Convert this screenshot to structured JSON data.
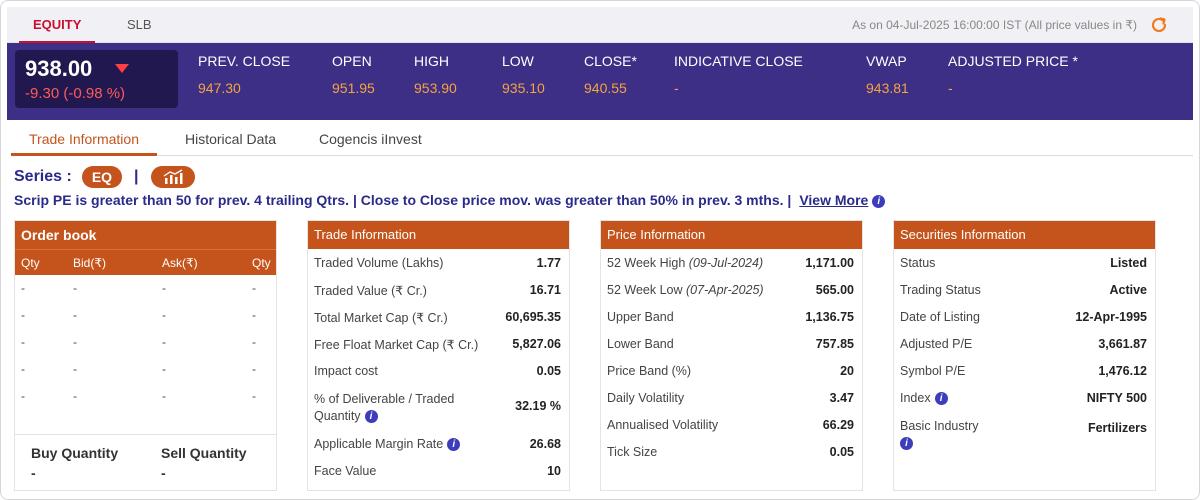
{
  "topbar": {
    "tab_equity": "EQUITY",
    "tab_slb": "SLB",
    "as_on": "As on 04-Jul-2025 16:00:00 IST (All price values in ₹)"
  },
  "quote": {
    "ltp": "938.00",
    "change": "-9.30 (-0.98 %)",
    "stats": [
      {
        "label": "PREV. CLOSE",
        "value": "947.30"
      },
      {
        "label": "OPEN",
        "value": "951.95"
      },
      {
        "label": "HIGH",
        "value": "953.90"
      },
      {
        "label": "LOW",
        "value": "935.10"
      },
      {
        "label": "CLOSE*",
        "value": "940.55"
      },
      {
        "label": "INDICATIVE CLOSE",
        "value": "-"
      },
      {
        "label": "VWAP",
        "value": "943.81"
      },
      {
        "label": "ADJUSTED PRICE *",
        "value": "-"
      }
    ]
  },
  "subtabs": [
    "Trade Information",
    "Historical Data",
    "Cogencis iInvest"
  ],
  "series": {
    "label": "Series :",
    "value": "EQ",
    "separator": "|"
  },
  "notice": {
    "text": "Scrip PE is greater than 50 for prev. 4 trailing Qtrs. | Close to Close price mov. was greater than 50% in prev. 3 mths. |",
    "link": "View More",
    "info": "i"
  },
  "order_book": {
    "title": "Order book",
    "columns": [
      "Qty",
      "Bid(₹)",
      "Ask(₹)",
      "Qty"
    ],
    "rows": [
      [
        "-",
        "-",
        "-",
        "-"
      ],
      [
        "-",
        "-",
        "-",
        "-"
      ],
      [
        "-",
        "-",
        "-",
        "-"
      ],
      [
        "-",
        "-",
        "-",
        "-"
      ],
      [
        "-",
        "-",
        "-",
        "-"
      ]
    ],
    "buy_quantity_label": "Buy Quantity",
    "buy_quantity_value": "-",
    "sell_quantity_label": "Sell Quantity",
    "sell_quantity_value": "-"
  },
  "trade_info": {
    "title": "Trade Information",
    "rows": [
      {
        "label": "Traded Volume (Lakhs)",
        "value": "1.77"
      },
      {
        "label": "Traded Value (₹ Cr.)",
        "value": "16.71"
      },
      {
        "label": "Total Market Cap (₹ Cr.)",
        "value": "60,695.35"
      },
      {
        "label": "Free Float Market Cap (₹ Cr.)",
        "value": "5,827.06"
      },
      {
        "label": "Impact cost",
        "value": "0.05"
      },
      {
        "label": "% of Deliverable / Traded",
        "label2": "Quantity",
        "value": "32.19 %"
      },
      {
        "label": "Applicable Margin Rate",
        "value": "26.68"
      },
      {
        "label": "Face Value",
        "value": "10"
      }
    ]
  },
  "price_info": {
    "title": "Price Information",
    "rows": [
      {
        "label": "52 Week High",
        "date": "(09-Jul-2024)",
        "value": "1,171.00"
      },
      {
        "label": "52 Week Low",
        "date": "(07-Apr-2025)",
        "value": "565.00"
      },
      {
        "label": "Upper Band",
        "value": "1,136.75"
      },
      {
        "label": "Lower Band",
        "value": "757.85"
      },
      {
        "label": "Price Band (%)",
        "value": "20"
      },
      {
        "label": "Daily Volatility",
        "value": "3.47"
      },
      {
        "label": "Annualised Volatility",
        "value": "66.29"
      },
      {
        "label": "Tick Size",
        "value": "0.05"
      }
    ]
  },
  "securities_info": {
    "title": "Securities Information",
    "rows": [
      {
        "label": "Status",
        "value": "Listed"
      },
      {
        "label": "Trading Status",
        "value": "Active"
      },
      {
        "label": "Date of Listing",
        "value": "12-Apr-1995"
      },
      {
        "label": "Adjusted P/E",
        "value": "3,661.87"
      },
      {
        "label": "Symbol P/E",
        "value": "1,476.12"
      },
      {
        "label": "Index",
        "value": "NIFTY 500"
      },
      {
        "label": "Basic Industry",
        "value": "Fertilizers"
      }
    ]
  },
  "colors": {
    "accent": "#c4541c",
    "banner": "#3d2f86",
    "price_value": "#f4a340",
    "negative": "#ff5a5a",
    "text_blue": "#2a2a8a"
  }
}
